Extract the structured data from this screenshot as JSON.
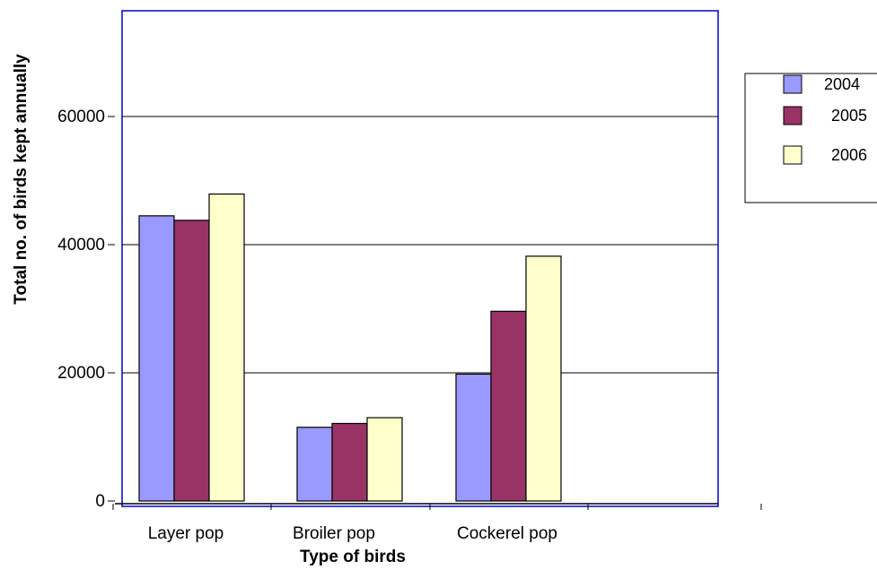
{
  "chart_data": {
    "type": "bar",
    "title": "",
    "xlabel": "Type of birds",
    "ylabel": "Total no. of birds kept annually",
    "categories": [
      "Layer pop",
      "Broiler pop",
      "Cockerel pop"
    ],
    "series": [
      {
        "name": "2004",
        "values": [
          44500,
          11500,
          19800
        ],
        "color": "#9999ff"
      },
      {
        "name": "2005",
        "values": [
          43800,
          12100,
          29600
        ],
        "color": "#993366"
      },
      {
        "name": "2006",
        "values": [
          47900,
          13000,
          38200
        ],
        "color": "#ffffcc"
      }
    ],
    "y_ticks": [
      {
        "value": 0,
        "label": "0"
      },
      {
        "value": 20000,
        "label": "20000"
      },
      {
        "value": 40000,
        "label": "40000"
      },
      {
        "value": 60000,
        "label": "60000"
      }
    ],
    "ylim": [
      0,
      76000
    ],
    "grid": true,
    "legend_position": "right",
    "colors": {
      "plot_border": "#0000cc",
      "gridline": "#000000"
    }
  }
}
